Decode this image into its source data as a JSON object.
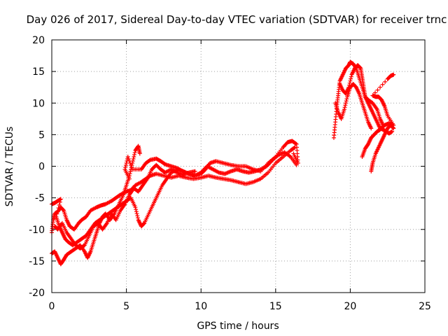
{
  "chart_data": {
    "type": "scatter",
    "title": "Day 026 of 2017, Sidereal Day-to-day VTEC variation (SDTVAR) for receiver trnc",
    "xlabel": "GPS time / hours",
    "ylabel": "SDTVAR / TECUs",
    "xlim": [
      0,
      25
    ],
    "ylim": [
      -20,
      20
    ],
    "xticks": [
      "0",
      "5",
      "10",
      "15",
      "20",
      "25"
    ],
    "yticks": [
      "-20",
      "-15",
      "-10",
      "-5",
      "0",
      "5",
      "10",
      "15",
      "20"
    ],
    "grid": true,
    "marker": "plus",
    "color": "#ff0000",
    "series": [
      {
        "name": "",
        "points": [
          [
            0.0,
            -10.5
          ],
          [
            0.1,
            -8.5
          ],
          [
            0.2,
            -7.5
          ],
          [
            0.4,
            -7.2
          ],
          [
            0.6,
            -6.5
          ],
          [
            0.8,
            -7.0
          ],
          [
            1.0,
            -8.5
          ],
          [
            1.2,
            -9.5
          ],
          [
            1.5,
            -10.0
          ],
          [
            1.8,
            -9.0
          ],
          [
            2.0,
            -8.5
          ],
          [
            2.3,
            -8.0
          ],
          [
            2.6,
            -7.0
          ],
          [
            3.0,
            -6.5
          ],
          [
            3.3,
            -6.2
          ],
          [
            3.6,
            -6.0
          ],
          [
            4.0,
            -5.5
          ],
          [
            4.3,
            -5.0
          ],
          [
            4.6,
            -4.5
          ],
          [
            5.0,
            -4.0
          ],
          [
            5.3,
            -3.8
          ],
          [
            5.6,
            -3.0
          ],
          [
            6.0,
            -2.5
          ],
          [
            6.3,
            -2.0
          ],
          [
            6.6,
            -1.5
          ],
          [
            7.0,
            -1.2
          ],
          [
            7.5,
            -1.5
          ],
          [
            8.0,
            -1.8
          ],
          [
            8.5,
            -1.5
          ],
          [
            9.0,
            -1.8
          ],
          [
            9.5,
            -2.0
          ],
          [
            10.0,
            -1.8
          ],
          [
            10.5,
            -1.5
          ],
          [
            11.0,
            -1.8
          ],
          [
            11.5,
            -2.0
          ],
          [
            12.0,
            -2.2
          ],
          [
            12.5,
            -2.5
          ],
          [
            13.0,
            -2.8
          ],
          [
            13.5,
            -2.5
          ],
          [
            14.0,
            -2.0
          ],
          [
            14.5,
            -1.0
          ],
          [
            15.0,
            0.5
          ],
          [
            15.5,
            1.5
          ],
          [
            16.0,
            2.5
          ],
          [
            16.3,
            3.0
          ]
        ]
      },
      {
        "name": "",
        "points": [
          [
            0.0,
            -6.0
          ],
          [
            0.2,
            -5.8
          ],
          [
            0.4,
            -5.5
          ],
          [
            0.6,
            -5.2
          ],
          [
            0.3,
            -8.0
          ],
          [
            0.5,
            -9.5
          ],
          [
            0.7,
            -10.5
          ],
          [
            0.9,
            -11.5
          ],
          [
            1.1,
            -12.0
          ],
          [
            1.4,
            -12.5
          ],
          [
            1.7,
            -12.0
          ],
          [
            2.0,
            -11.5
          ],
          [
            2.3,
            -11.0
          ],
          [
            2.6,
            -10.0
          ],
          [
            2.9,
            -9.0
          ],
          [
            3.2,
            -8.5
          ],
          [
            3.5,
            -8.0
          ],
          [
            3.8,
            -7.5
          ],
          [
            4.1,
            -7.0
          ],
          [
            4.4,
            -6.5
          ],
          [
            4.7,
            -6.0
          ],
          [
            5.0,
            -5.5
          ],
          [
            5.3,
            -5.0
          ],
          [
            5.6,
            -6.5
          ],
          [
            5.8,
            -8.5
          ],
          [
            6.0,
            -9.5
          ],
          [
            6.2,
            -9.0
          ],
          [
            6.5,
            -7.5
          ],
          [
            6.8,
            -6.0
          ],
          [
            7.1,
            -4.5
          ],
          [
            7.4,
            -3.0
          ],
          [
            7.7,
            -2.0
          ],
          [
            8.0,
            -1.0
          ],
          [
            8.5,
            -0.5
          ],
          [
            9.0,
            -1.0
          ],
          [
            9.5,
            -1.5
          ],
          [
            10.0,
            -1.2
          ],
          [
            10.3,
            -0.5
          ],
          [
            10.6,
            0.5
          ],
          [
            11.0,
            0.8
          ],
          [
            11.5,
            0.5
          ],
          [
            12.0,
            0.2
          ],
          [
            12.5,
            0.0
          ],
          [
            13.0,
            0.0
          ],
          [
            13.5,
            -0.5
          ],
          [
            14.0,
            -0.8
          ],
          [
            14.5,
            0.5
          ],
          [
            15.0,
            1.5
          ],
          [
            15.5,
            3.0
          ],
          [
            15.8,
            3.8
          ],
          [
            16.1,
            4.0
          ],
          [
            16.4,
            3.5
          ],
          [
            16.5,
            0.5
          ],
          [
            16.2,
            2.0
          ]
        ]
      },
      {
        "name": "",
        "points": [
          [
            0.0,
            -13.8
          ],
          [
            0.2,
            -13.5
          ],
          [
            0.4,
            -14.5
          ],
          [
            0.6,
            -15.5
          ],
          [
            0.8,
            -14.8
          ],
          [
            1.0,
            -14.0
          ],
          [
            1.3,
            -13.5
          ],
          [
            1.6,
            -13.0
          ],
          [
            1.9,
            -12.5
          ],
          [
            2.2,
            -13.5
          ],
          [
            2.4,
            -14.5
          ],
          [
            2.6,
            -13.5
          ],
          [
            2.8,
            -12.0
          ],
          [
            3.0,
            -10.5
          ],
          [
            3.2,
            -9.0
          ],
          [
            3.4,
            -8.0
          ],
          [
            3.6,
            -7.5
          ],
          [
            3.9,
            -8.5
          ],
          [
            4.2,
            -7.5
          ],
          [
            4.5,
            -6.0
          ],
          [
            4.8,
            -4.5
          ],
          [
            5.0,
            -3.0
          ],
          [
            5.2,
            -1.5
          ],
          [
            5.4,
            0.5
          ],
          [
            5.6,
            2.5
          ],
          [
            5.8,
            3.2
          ],
          [
            5.9,
            2.0
          ],
          [
            5.2,
            -2.0
          ],
          [
            4.9,
            -0.5
          ],
          [
            5.1,
            1.5
          ],
          [
            5.4,
            -0.5
          ],
          [
            6.0,
            -0.5
          ],
          [
            6.3,
            0.5
          ],
          [
            6.6,
            1.0
          ],
          [
            7.0,
            1.2
          ],
          [
            7.3,
            0.8
          ],
          [
            7.6,
            0.3
          ],
          [
            8.0,
            0.0
          ],
          [
            8.4,
            -0.3
          ],
          [
            8.8,
            -0.8
          ],
          [
            9.2,
            -1.2
          ],
          [
            9.6,
            -1.5
          ],
          [
            10.0,
            -1.0
          ],
          [
            10.4,
            0.0
          ],
          [
            10.8,
            -0.5
          ],
          [
            11.2,
            -1.0
          ],
          [
            11.6,
            -1.2
          ],
          [
            12.0,
            -0.8
          ],
          [
            12.4,
            -0.5
          ],
          [
            12.8,
            -0.8
          ],
          [
            13.2,
            -1.0
          ],
          [
            13.6,
            -0.8
          ],
          [
            14.0,
            -0.5
          ],
          [
            14.4,
            0.0
          ],
          [
            14.8,
            1.0
          ],
          [
            15.2,
            1.8
          ],
          [
            15.6,
            2.2
          ],
          [
            16.0,
            1.5
          ],
          [
            16.4,
            0.2
          ]
        ]
      },
      {
        "name": "",
        "points": [
          [
            0.2,
            -9.5
          ],
          [
            0.4,
            -10.0
          ],
          [
            0.7,
            -9.0
          ],
          [
            1.0,
            -10.5
          ],
          [
            1.3,
            -11.5
          ],
          [
            1.6,
            -12.5
          ],
          [
            1.9,
            -13.0
          ],
          [
            2.2,
            -12.5
          ],
          [
            2.5,
            -11.0
          ],
          [
            2.8,
            -9.5
          ],
          [
            3.1,
            -9.0
          ],
          [
            3.4,
            -10.0
          ],
          [
            3.7,
            -9.0
          ],
          [
            4.0,
            -7.5
          ],
          [
            4.3,
            -8.5
          ],
          [
            4.6,
            -7.0
          ],
          [
            4.9,
            -6.0
          ],
          [
            5.2,
            -4.5
          ],
          [
            5.5,
            -3.5
          ],
          [
            5.8,
            -4.0
          ],
          [
            6.1,
            -3.0
          ],
          [
            6.4,
            -2.0
          ],
          [
            6.7,
            -0.5
          ],
          [
            7.0,
            0.2
          ],
          [
            7.3,
            -0.5
          ],
          [
            7.6,
            -1.0
          ],
          [
            8.0,
            -0.5
          ],
          [
            8.4,
            -1.0
          ],
          [
            8.8,
            -1.3
          ],
          [
            9.2,
            -1.0
          ],
          [
            9.6,
            -0.8
          ]
        ]
      },
      {
        "name": "",
        "points": [
          [
            18.9,
            4.5
          ],
          [
            19.0,
            7.0
          ],
          [
            19.1,
            9.5
          ],
          [
            19.2,
            11.5
          ],
          [
            19.3,
            13.5
          ],
          [
            19.5,
            14.5
          ],
          [
            19.7,
            15.5
          ],
          [
            19.9,
            16.0
          ],
          [
            20.0,
            16.5
          ],
          [
            20.2,
            16.2
          ],
          [
            20.4,
            15.5
          ],
          [
            20.6,
            14.0
          ],
          [
            20.8,
            12.5
          ],
          [
            21.0,
            11.0
          ],
          [
            21.2,
            10.0
          ],
          [
            21.4,
            9.0
          ],
          [
            21.6,
            8.0
          ],
          [
            21.8,
            7.0
          ],
          [
            22.0,
            6.0
          ],
          [
            22.2,
            5.8
          ],
          [
            22.4,
            5.5
          ],
          [
            22.6,
            5.2
          ],
          [
            22.8,
            5.5
          ],
          [
            19.0,
            10.0
          ],
          [
            19.2,
            8.5
          ],
          [
            19.4,
            7.5
          ],
          [
            19.6,
            9.0
          ],
          [
            19.8,
            11.0
          ],
          [
            20.0,
            12.5
          ],
          [
            20.2,
            13.0
          ],
          [
            20.4,
            12.5
          ],
          [
            20.6,
            11.5
          ],
          [
            20.8,
            10.0
          ],
          [
            21.0,
            8.5
          ],
          [
            21.2,
            7.0
          ],
          [
            21.4,
            6.0
          ],
          [
            19.3,
            13.0
          ],
          [
            19.5,
            12.0
          ],
          [
            19.7,
            11.5
          ],
          [
            19.9,
            12.5
          ],
          [
            20.1,
            14.5
          ],
          [
            20.3,
            15.5
          ],
          [
            20.5,
            16.0
          ],
          [
            20.7,
            15.5
          ],
          [
            20.8,
            14.0
          ],
          [
            20.9,
            12.5
          ],
          [
            21.0,
            11.0
          ],
          [
            21.2,
            10.5
          ],
          [
            21.5,
            10.0
          ],
          [
            21.8,
            9.0
          ],
          [
            22.0,
            7.5
          ],
          [
            22.2,
            6.5
          ],
          [
            21.4,
            -0.8
          ],
          [
            21.5,
            0.5
          ],
          [
            21.7,
            2.0
          ],
          [
            21.9,
            3.0
          ],
          [
            22.1,
            4.0
          ],
          [
            22.3,
            5.0
          ],
          [
            22.5,
            6.0
          ],
          [
            22.7,
            6.5
          ],
          [
            22.9,
            6.0
          ],
          [
            20.8,
            1.5
          ],
          [
            21.0,
            2.8
          ],
          [
            21.2,
            3.5
          ],
          [
            21.4,
            4.5
          ],
          [
            21.6,
            5.0
          ],
          [
            21.8,
            5.5
          ],
          [
            22.0,
            5.8
          ],
          [
            22.3,
            6.5
          ],
          [
            22.6,
            6.8
          ],
          [
            22.9,
            6.5
          ],
          [
            22.5,
            8.0
          ],
          [
            22.3,
            9.5
          ],
          [
            22.1,
            10.5
          ],
          [
            21.9,
            11.0
          ],
          [
            21.7,
            11.0
          ],
          [
            21.5,
            11.2
          ],
          [
            22.5,
            13.8
          ],
          [
            22.7,
            14.3
          ],
          [
            22.9,
            14.5
          ]
        ]
      }
    ]
  }
}
